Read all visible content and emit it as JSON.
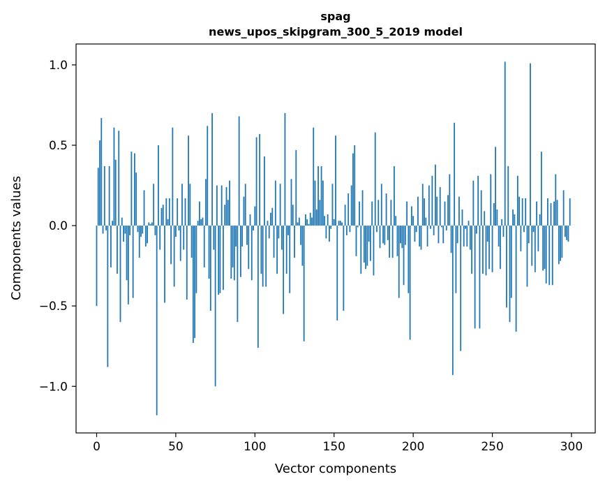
{
  "chart_data": {
    "type": "bar",
    "title": "spag",
    "subtitle": "news_upos_skipgram_300_5_2019 model",
    "xlabel": "Vector components",
    "ylabel": "Components values",
    "xlim": [
      -13,
      315
    ],
    "ylim": [
      -1.29,
      1.13
    ],
    "xticks": [
      0,
      50,
      100,
      150,
      200,
      250,
      300
    ],
    "xtick_labels": [
      "0",
      "50",
      "100",
      "150",
      "200",
      "250",
      "300"
    ],
    "yticks": [
      -1.0,
      -0.5,
      0.0,
      0.5,
      1.0
    ],
    "ytick_labels": [
      "−1.0",
      "−0.5",
      "0.0",
      "0.5",
      "1.0"
    ],
    "grid": false,
    "legend": "none",
    "color": "#1f77b4",
    "values": [
      -0.5,
      0.36,
      0.53,
      0.67,
      -0.05,
      0.37,
      -0.03,
      -0.88,
      0.37,
      -0.26,
      0.03,
      0.61,
      0.41,
      -0.3,
      0.59,
      -0.6,
      0.05,
      -0.1,
      -0.05,
      -0.34,
      -0.49,
      -0.06,
      0.46,
      -0.45,
      0.45,
      0.33,
      -0.04,
      -0.2,
      -0.07,
      -0.05,
      0.22,
      -0.13,
      -0.11,
      0.02,
      0.01,
      0.02,
      0.26,
      -0.06,
      -1.18,
      0.5,
      -0.15,
      0.11,
      0.13,
      -0.48,
      0.17,
      0.04,
      0.17,
      -0.24,
      0.61,
      -0.38,
      -0.07,
      0.17,
      -0.03,
      -0.22,
      0.26,
      -0.15,
      0.17,
      -0.46,
      0.56,
      0.26,
      -0.2,
      -0.73,
      -0.7,
      -0.42,
      0.03,
      0.15,
      0.04,
      0.05,
      -0.26,
      0.29,
      0.62,
      -0.33,
      -0.53,
      0.7,
      -0.15,
      -1.0,
      0.25,
      -0.43,
      -0.42,
      0.25,
      -0.4,
      0.13,
      0.24,
      0.16,
      0.28,
      -0.33,
      -0.26,
      -0.34,
      -0.13,
      -0.6,
      0.68,
      -0.32,
      -0.13,
      0.18,
      0.26,
      -0.12,
      -0.27,
      0.07,
      -0.34,
      -0.03,
      0.12,
      0.55,
      -0.76,
      0.57,
      -0.3,
      -0.38,
      0.43,
      -0.38,
      0.03,
      -0.08,
      0.08,
      0.11,
      -0.2,
      0.28,
      -0.3,
      -0.08,
      0.26,
      -0.15,
      -0.55,
      0.7,
      -0.3,
      -0.06,
      -0.42,
      0.29,
      0.13,
      -0.2,
      0.47,
      0.02,
      0.05,
      -0.12,
      -0.25,
      -0.72,
      0.07,
      0.04,
      0.01,
      0.08,
      0.05,
      0.61,
      0.28,
      0.1,
      0.37,
      0.16,
      0.37,
      0.28,
      0.06,
      -0.08,
      0.07,
      -0.1,
      -0.02,
      0.26,
      0.04,
      0.56,
      -0.59,
      0.03,
      0.03,
      0.02,
      -0.53,
      0.13,
      -0.06,
      0.2,
      -0.04,
      0.25,
      0.45,
      0.5,
      -0.19,
      -0.01,
      0.15,
      -0.3,
      0.22,
      -0.23,
      -0.27,
      -0.25,
      -0.1,
      -0.22,
      0.15,
      -0.31,
      0.58,
      -0.04,
      0.16,
      -0.14,
      0.26,
      -0.11,
      -0.12,
      0.2,
      -0.09,
      -0.2,
      0.16,
      -0.2,
      0.37,
      0.06,
      -0.19,
      -0.45,
      -0.11,
      -0.14,
      -0.37,
      -0.12,
      0.15,
      -0.42,
      -0.71,
      0.12,
      0.06,
      -0.1,
      -0.04,
      0.18,
      -0.13,
      -0.15,
      0.26,
      0.17,
      0.05,
      -0.13,
      0.25,
      -0.02,
      0.31,
      -0.06,
      0.38,
      0.18,
      -0.11,
      0.24,
      -0.01,
      -0.11,
      0.15,
      -0.03,
      0.19,
      0.32,
      -0.17,
      -0.93,
      0.64,
      -0.42,
      -0.11,
      0.18,
      -0.78,
      0.1,
      -0.13,
      -0.02,
      -0.13,
      0.03,
      -0.15,
      -0.3,
      0.28,
      -0.64,
      -0.05,
      0.31,
      -0.64,
      0.22,
      -0.3,
      0.09,
      -0.31,
      -0.1,
      -0.27,
      0.32,
      -0.29,
      0.14,
      0.49,
      0.1,
      -0.13,
      -0.27,
      0.04,
      -0.07,
      1.02,
      -0.51,
      0.37,
      -0.6,
      -0.45,
      0.1,
      0.07,
      -0.66,
      0.31,
      0.18,
      -0.16,
      0.17,
      -0.04,
      0.17,
      -0.38,
      -0.11,
      1.01,
      -0.25,
      -0.04,
      -0.29,
      0.15,
      -0.16,
      0.07,
      0.46,
      -0.28,
      -0.27,
      -0.36,
      0.17,
      -0.37,
      0.14,
      -0.37,
      0.15,
      0.32,
      0.16,
      -0.24,
      -0.22,
      -0.2,
      0.22,
      -0.07,
      -0.09,
      -0.1,
      0.17
    ]
  }
}
